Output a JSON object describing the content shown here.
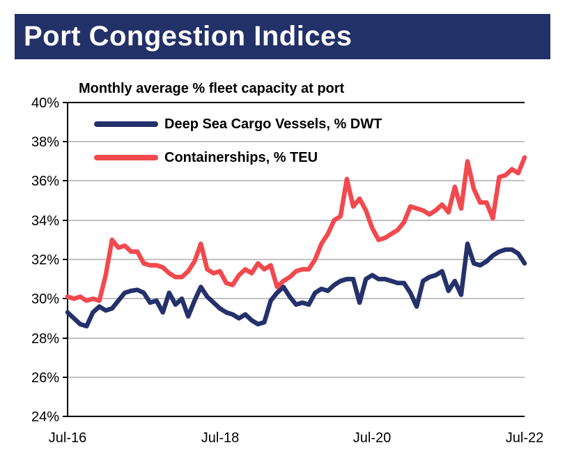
{
  "banner": {
    "title": "Port Congestion Indices",
    "bg_color": "#233169",
    "text_color": "#FFFFFF"
  },
  "chart_data": {
    "type": "line",
    "title": "Monthly average % fleet capacity at port",
    "xlabel": "",
    "ylabel": "",
    "ylim": [
      24,
      40
    ],
    "y_tick_step_pct": 2,
    "grid": "horizontal gray lines",
    "grid_color": "#C1C1C1",
    "axis_color": "#000000",
    "legend_position": "inside top-left",
    "x_frequency": "monthly",
    "x_start": "Jul-16",
    "x_end": "Jul-22",
    "y_ticks": [
      "40%",
      "38%",
      "36%",
      "34%",
      "32%",
      "30%",
      "28%",
      "26%",
      "24%"
    ],
    "x_ticks": [
      "Jul-16",
      "Jul-18",
      "Jul-20",
      "Jul-22"
    ],
    "series": [
      {
        "name": "Deep Sea Cargo Vessels, % DWT",
        "color": "#24316B",
        "values": [
          29.3,
          29.0,
          28.7,
          28.6,
          29.3,
          29.6,
          29.4,
          29.5,
          29.9,
          30.3,
          30.4,
          30.45,
          30.3,
          29.8,
          29.9,
          29.3,
          30.3,
          29.7,
          30.0,
          29.1,
          29.9,
          30.6,
          30.1,
          29.8,
          29.5,
          29.3,
          29.2,
          29.0,
          29.2,
          28.9,
          28.7,
          28.8,
          29.9,
          30.3,
          30.6,
          30.1,
          29.7,
          29.8,
          29.7,
          30.3,
          30.5,
          30.4,
          30.7,
          30.9,
          31.0,
          31.0,
          29.8,
          31.0,
          31.2,
          31.0,
          31.0,
          30.9,
          30.8,
          30.8,
          30.3,
          29.6,
          30.9,
          31.1,
          31.2,
          31.4,
          30.4,
          30.9,
          30.2,
          32.8,
          31.8,
          31.7,
          31.9,
          32.2,
          32.4,
          32.5,
          32.5,
          32.3,
          31.8
        ]
      },
      {
        "name": "Containerships, % TEU",
        "color": "#F2494E",
        "values": [
          30.1,
          30.0,
          30.1,
          29.9,
          30.0,
          29.9,
          31.2,
          33.0,
          32.6,
          32.7,
          32.4,
          32.4,
          31.8,
          31.7,
          31.7,
          31.6,
          31.3,
          31.1,
          31.1,
          31.4,
          31.9,
          32.8,
          31.5,
          31.3,
          31.4,
          30.8,
          30.7,
          31.2,
          31.5,
          31.3,
          31.8,
          31.5,
          31.7,
          30.6,
          30.9,
          31.1,
          31.4,
          31.5,
          31.5,
          32.0,
          32.8,
          33.3,
          34.0,
          34.2,
          36.1,
          34.7,
          35.1,
          34.5,
          33.6,
          33.0,
          33.1,
          33.3,
          33.5,
          33.9,
          34.7,
          34.6,
          34.5,
          34.3,
          34.5,
          34.8,
          34.4,
          35.7,
          34.6,
          37.0,
          35.6,
          34.9,
          34.9,
          34.1,
          36.2,
          36.3,
          36.6,
          36.4,
          37.2
        ]
      }
    ]
  }
}
